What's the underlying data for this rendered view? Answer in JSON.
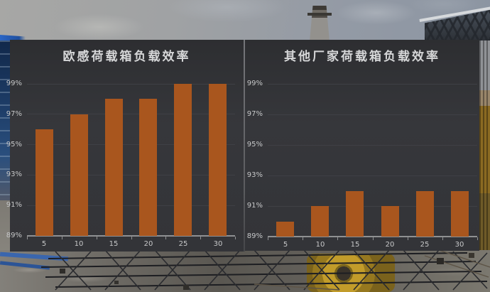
{
  "colors": {
    "bar": "#a9561e",
    "panel_bg": "#343539",
    "gridline": "#3f4045",
    "axis": "#8f9092",
    "tick_label": "#c7c8c9",
    "title": "#d6d7d8"
  },
  "chart_data": [
    {
      "type": "bar",
      "title": "欧感荷载箱负载效率",
      "categories": [
        "5",
        "10",
        "15",
        "20",
        "25",
        "30"
      ],
      "values": [
        96,
        97,
        98,
        98,
        99,
        99
      ],
      "yticks": [
        "99%",
        "97%",
        "95%",
        "93%",
        "91%",
        "89%"
      ],
      "ylim": [
        89,
        99
      ],
      "xlabel": "",
      "ylabel": "",
      "grid": true,
      "legend": "none",
      "bar_color": "#a9561e"
    },
    {
      "type": "bar",
      "title": "其他厂家荷载箱负载效率",
      "categories": [
        "5",
        "10",
        "15",
        "20",
        "25",
        "30"
      ],
      "values": [
        90,
        91,
        92,
        91,
        92,
        92
      ],
      "yticks": [
        "99%",
        "97%",
        "95%",
        "93%",
        "91%",
        "89%"
      ],
      "ylim": [
        89,
        99
      ],
      "xlabel": "",
      "ylabel": "",
      "grid": true,
      "legend": "none",
      "bar_color": "#a9561e"
    }
  ]
}
